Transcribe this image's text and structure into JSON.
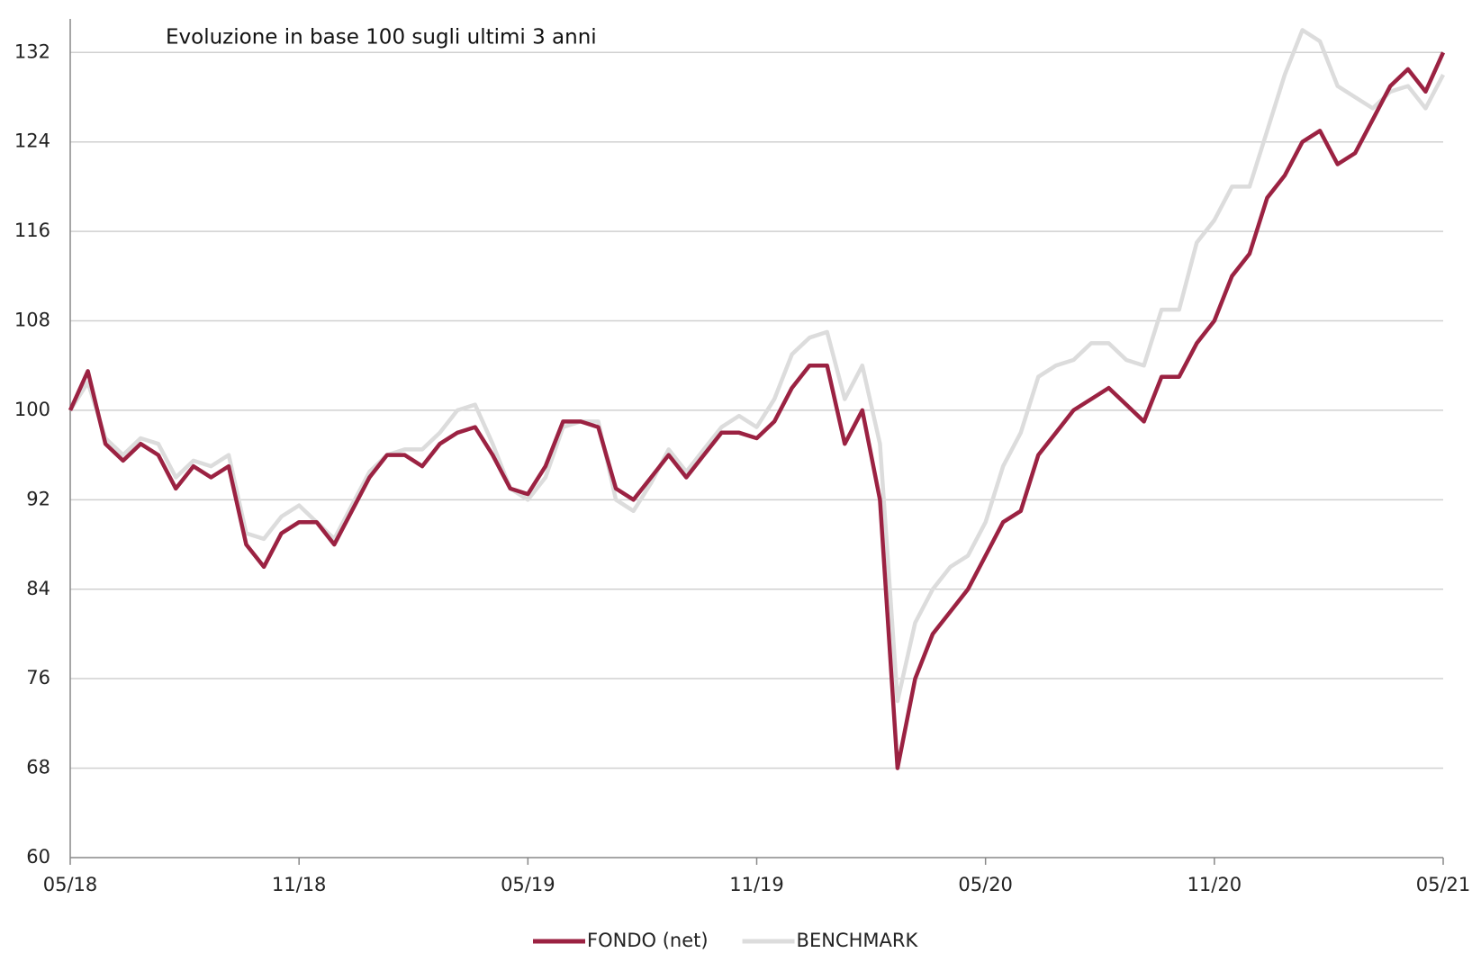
{
  "chart_data": {
    "type": "line",
    "title": "Evoluzione in base 100 sugli ultimi 3 anni",
    "categories": [
      "05/18",
      null,
      null,
      null,
      null,
      null,
      null,
      null,
      null,
      null,
      null,
      null,
      null,
      "11/18",
      null,
      null,
      null,
      null,
      null,
      null,
      null,
      null,
      null,
      null,
      null,
      null,
      "05/19",
      null,
      null,
      null,
      null,
      null,
      null,
      null,
      null,
      null,
      null,
      null,
      null,
      "11/19",
      null,
      null,
      null,
      null,
      null,
      null,
      null,
      null,
      null,
      null,
      null,
      null,
      "05/20",
      null,
      null,
      null,
      null,
      null,
      null,
      null,
      null,
      null,
      null,
      null,
      null,
      "11/20",
      null,
      null,
      null,
      null,
      null,
      null,
      null,
      null,
      null,
      null,
      null,
      null,
      "05/21"
    ],
    "series": [
      {
        "name": "FONDO (net)",
        "color": "#9b2242",
        "values": [
          100,
          103.5,
          97,
          95.5,
          97,
          96,
          93,
          95,
          94,
          95,
          88,
          86,
          89,
          90,
          90,
          88,
          91,
          94,
          96,
          96,
          95,
          97,
          98,
          98.5,
          96,
          93,
          92.5,
          95,
          99,
          99,
          98.5,
          93,
          92,
          94,
          96,
          94,
          96,
          98,
          98,
          97.5,
          99,
          102,
          104,
          104,
          97,
          100,
          92,
          68,
          76,
          80,
          82,
          84,
          87,
          90,
          91,
          96,
          98,
          100,
          101,
          102,
          100.5,
          99,
          103,
          103,
          106,
          108,
          112,
          114,
          119,
          121,
          124,
          125,
          122,
          123,
          126,
          129,
          130.5,
          128.5,
          132
        ]
      },
      {
        "name": "BENCHMARK",
        "color": "#dcdcdc",
        "values": [
          100,
          102.5,
          97.5,
          96,
          97.5,
          97,
          94,
          95.5,
          95,
          96,
          89,
          88.5,
          90.5,
          91.5,
          90,
          88.5,
          91.5,
          94.5,
          96,
          96.5,
          96.5,
          98,
          100,
          100.5,
          97,
          93,
          92,
          94,
          98.5,
          99,
          99,
          92,
          91,
          93.5,
          96.5,
          94.5,
          96.5,
          98.5,
          99.5,
          98.5,
          101,
          105,
          106.5,
          107,
          101,
          104,
          97,
          74,
          81,
          84,
          86,
          87,
          90,
          95,
          98,
          103,
          104,
          104.5,
          106,
          106,
          104.5,
          104,
          109,
          109,
          115,
          117,
          120,
          120,
          125,
          130,
          134,
          133,
          129,
          128,
          127,
          128.5,
          129,
          127,
          130
        ]
      }
    ],
    "ylim": [
      60,
      135
    ],
    "yticks": [
      60,
      68,
      76,
      84,
      92,
      100,
      108,
      116,
      124,
      132
    ],
    "grid": true,
    "legend": "bottom"
  }
}
